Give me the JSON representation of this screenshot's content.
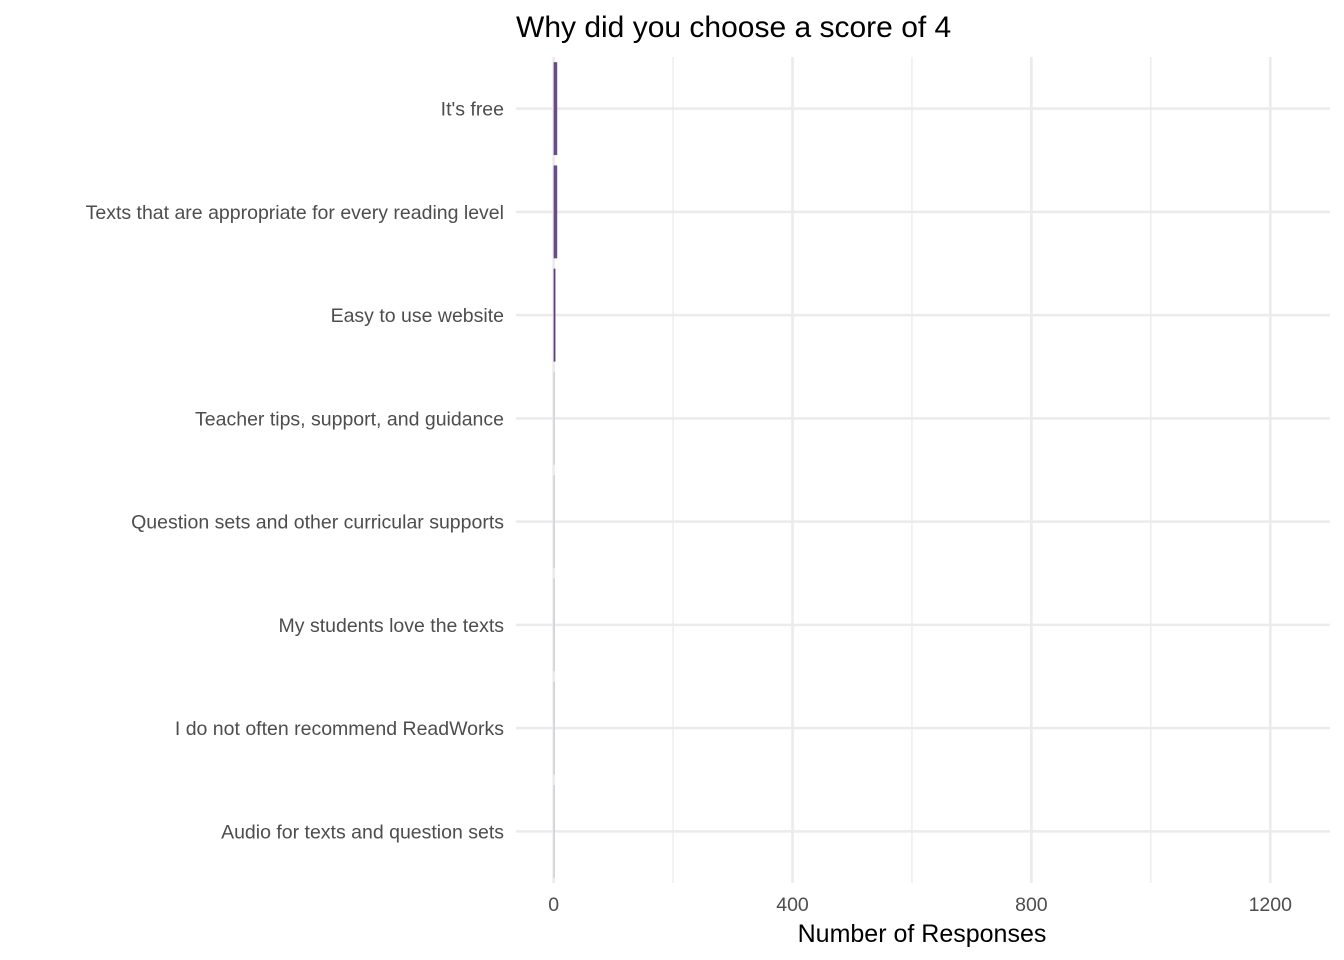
{
  "chart_data": {
    "type": "bar",
    "orientation": "horizontal",
    "title": "Why did you choose a score of 4",
    "xlabel": "Number of Responses",
    "ylabel": "",
    "categories": [
      "It's free",
      "Texts that are appropriate for every reading level",
      "Easy to use website",
      "Teacher tips, support, and guidance",
      "Question sets and other curricular supports",
      "My students love the texts",
      "I do not often recommend ReadWorks",
      "Audio for texts and question sets"
    ],
    "values": [
      6,
      6,
      3,
      1,
      1,
      1,
      1,
      1
    ],
    "bar_colors": [
      "#6b4c86",
      "#6b4c86",
      "#5e3c7a",
      "#c8bfd3",
      "#c8bfd3",
      "#c8bfd3",
      "#c8bfd3",
      "#c8bfd3"
    ],
    "xlim": [
      -63,
      1300
    ],
    "xticks": [
      0,
      400,
      800,
      1200
    ],
    "xticks_minor": [
      200,
      600,
      1000
    ],
    "grid": true,
    "legend": "none"
  }
}
